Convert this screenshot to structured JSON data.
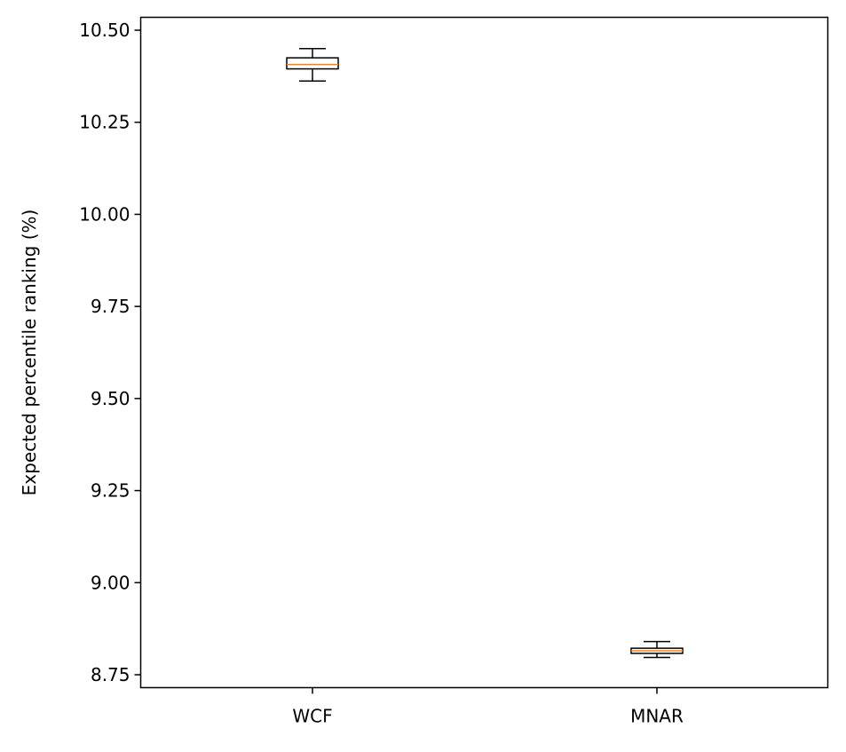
{
  "chart_data": {
    "type": "box",
    "title": "",
    "xlabel": "",
    "ylabel": "Expected percentile ranking (%)",
    "ylim": [
      8.715,
      10.535
    ],
    "yticks": [
      8.75,
      9.0,
      9.25,
      9.5,
      9.75,
      10.0,
      10.25,
      10.5
    ],
    "ytick_labels": [
      "8.75",
      "9.00",
      "9.25",
      "9.50",
      "9.75",
      "10.00",
      "10.25",
      "10.50"
    ],
    "categories": [
      "WCF",
      "MNAR"
    ],
    "boxes": [
      {
        "label": "WCF",
        "whisker_low": 10.362,
        "q1": 10.395,
        "median": 10.407,
        "q3": 10.425,
        "whisker_high": 10.45
      },
      {
        "label": "MNAR",
        "whisker_low": 8.797,
        "q1": 8.808,
        "median": 8.815,
        "q3": 8.822,
        "whisker_high": 8.84
      }
    ],
    "grid": false,
    "colors": {
      "box": "#000000",
      "median": "#ff7f0e",
      "whisker": "#000000"
    }
  }
}
